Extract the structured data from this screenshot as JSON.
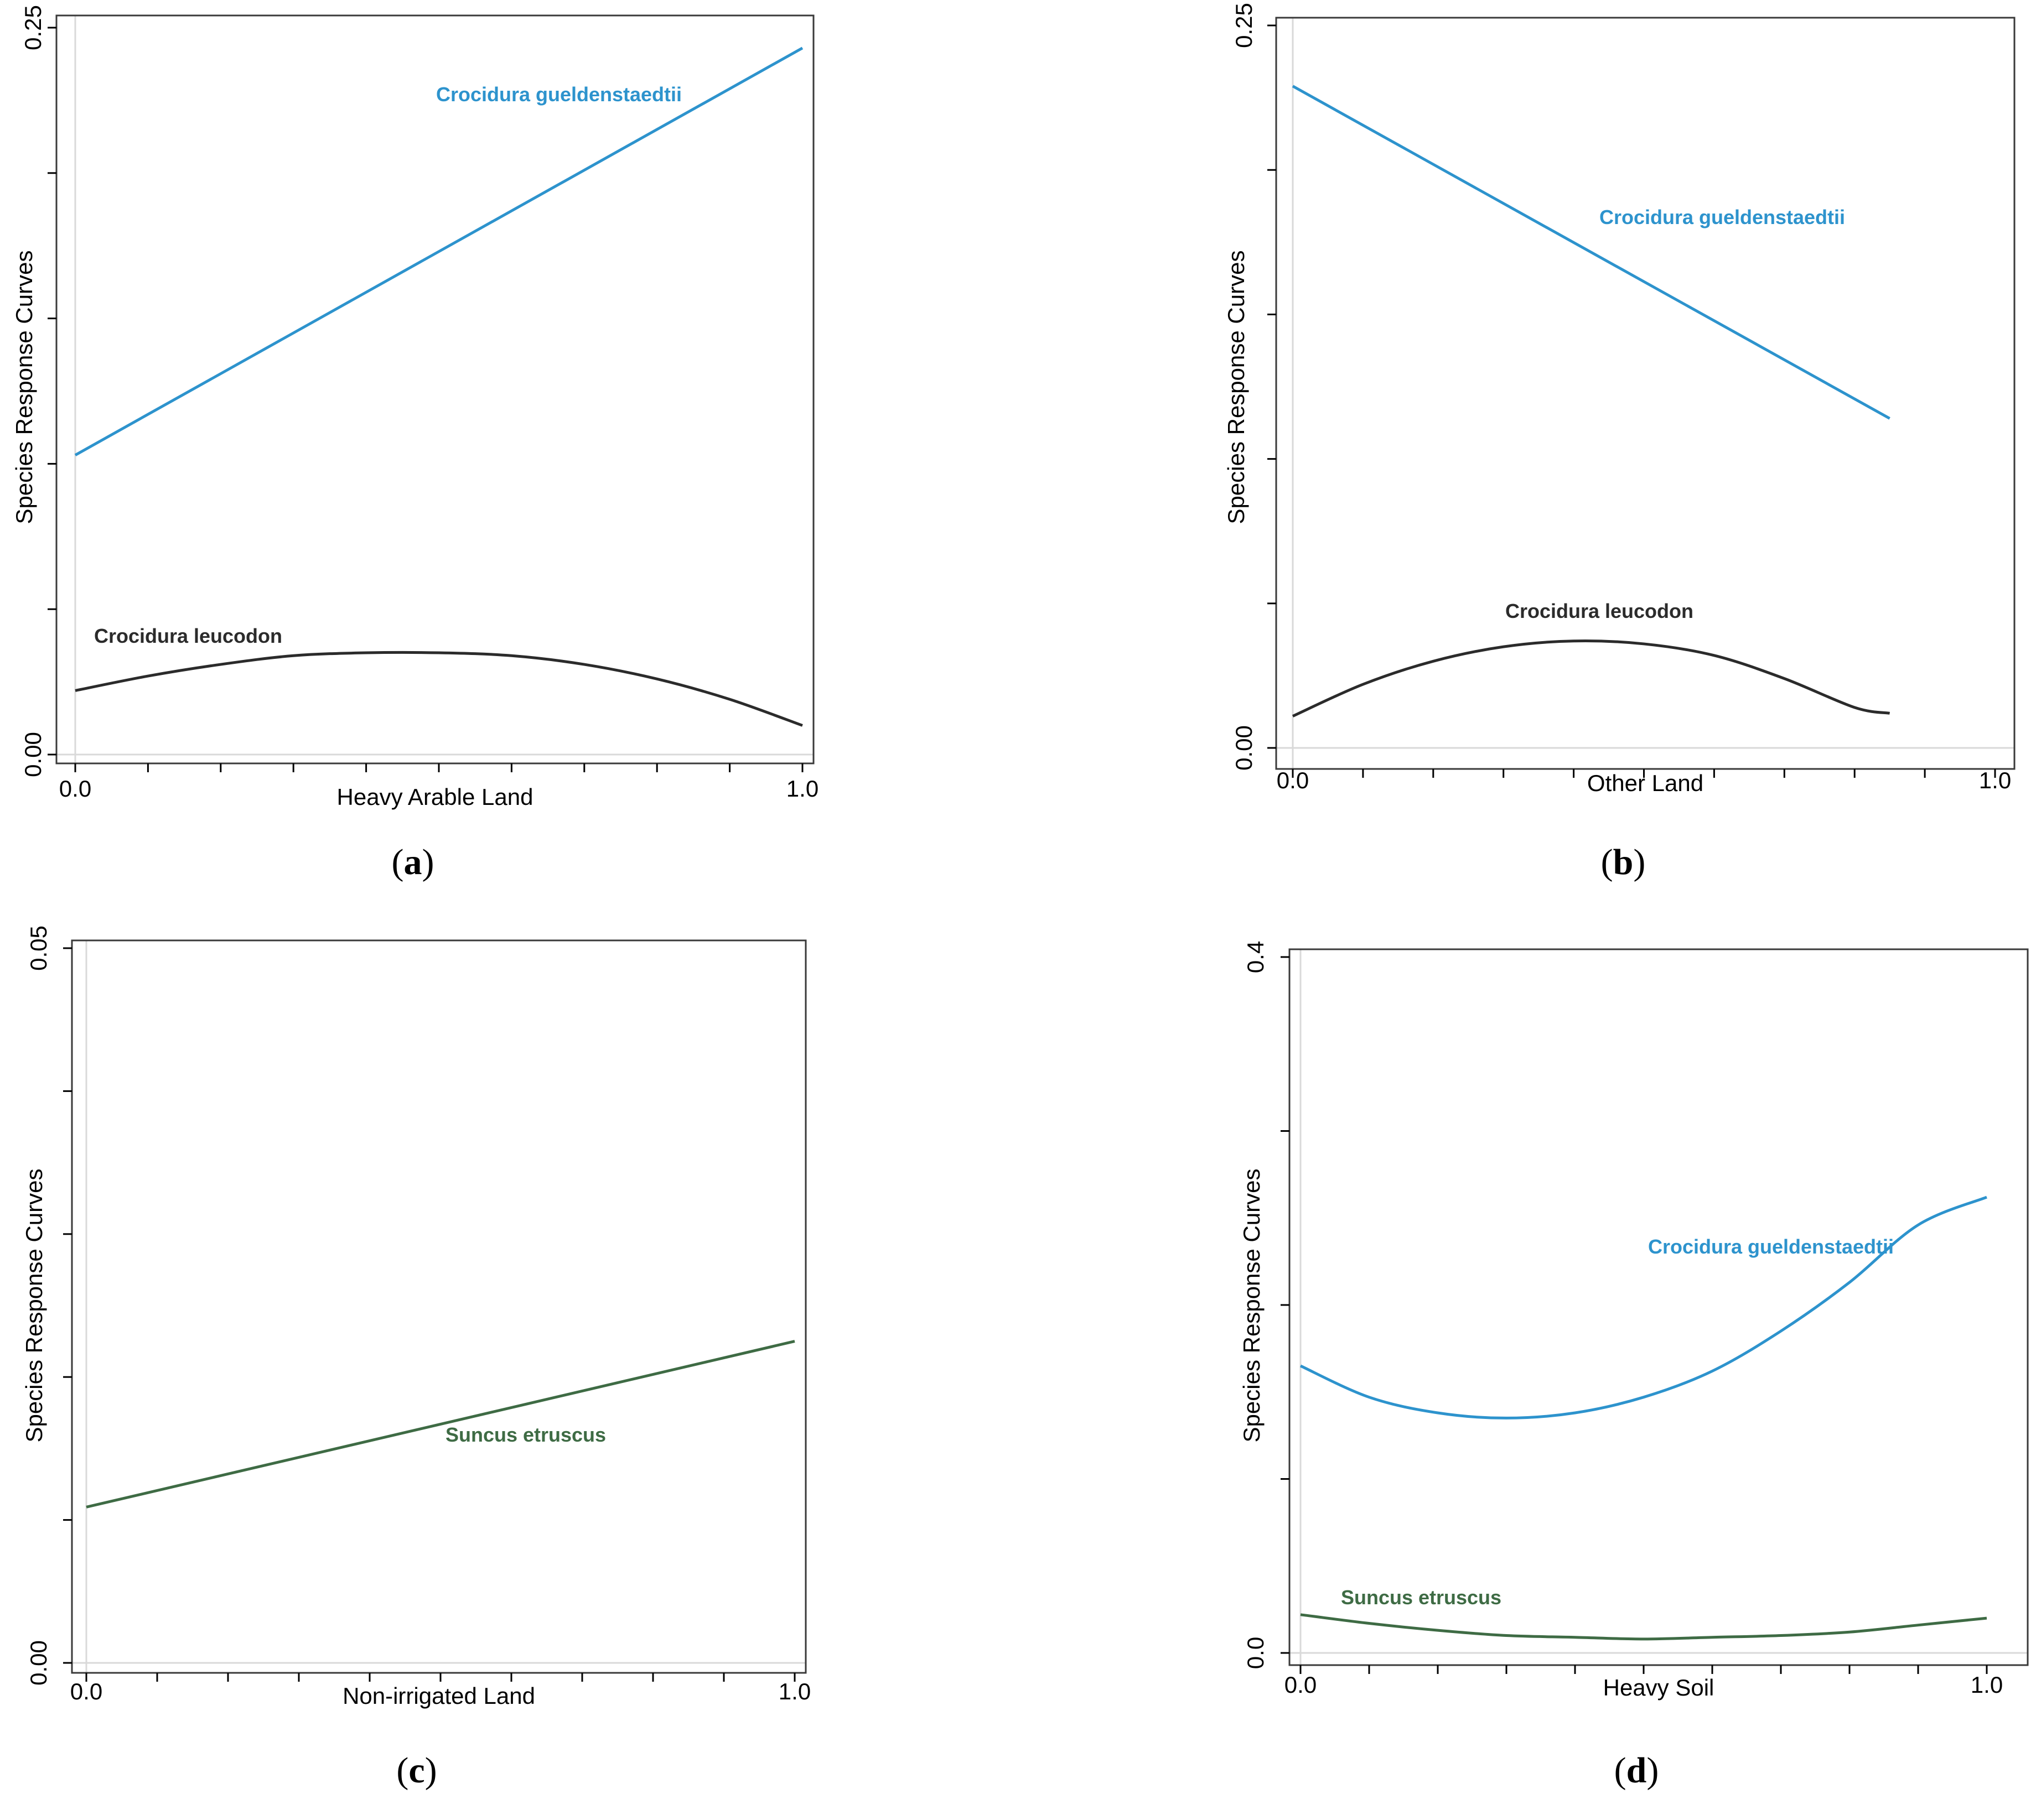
{
  "colors": {
    "crocidura_gueldenstaedtii": "#2d93cd",
    "crocidura_leucodon": "#2b2b2b",
    "suncus_etruscus": "#3e6b44",
    "axis": "#000000",
    "frame": "#3a3a3a",
    "grid_edge": "#d9d9d9"
  },
  "chart_data": [
    {
      "type": "line",
      "panel": "(a)",
      "panel_letter": "a",
      "xlabel": "Heavy Arable Land",
      "ylabel": "Species Response Curves",
      "xlim": [
        0.0,
        1.0
      ],
      "ylim": [
        0.0,
        0.25
      ],
      "x_tick_labels": [
        "0.0",
        "1.0"
      ],
      "y_tick_labels": [
        "0.00",
        "0.25"
      ],
      "series": [
        {
          "name": "Crocidura gueldenstaedtii",
          "color_key": "crocidura_gueldenstaedtii",
          "x": [
            0.0,
            1.0
          ],
          "y": [
            0.103,
            0.243
          ]
        },
        {
          "name": "Crocidura leucodon",
          "color_key": "crocidura_leucodon",
          "x": [
            0.0,
            0.1,
            0.2,
            0.3,
            0.4,
            0.5,
            0.6,
            0.7,
            0.8,
            0.9,
            1.0
          ],
          "y": [
            0.022,
            0.027,
            0.031,
            0.034,
            0.035,
            0.035,
            0.034,
            0.031,
            0.026,
            0.019,
            0.01
          ]
        }
      ]
    },
    {
      "type": "line",
      "panel": "(b)",
      "panel_letter": "b",
      "xlabel": "Other Land",
      "ylabel": "Species Response Curves",
      "xlim": [
        0.0,
        1.0
      ],
      "ylim": [
        0.0,
        0.25
      ],
      "x_tick_labels": [
        "0.0",
        "1.0"
      ],
      "y_tick_labels": [
        "0.00",
        "0.25"
      ],
      "series": [
        {
          "name": "Crocidura gueldenstaedtii",
          "color_key": "crocidura_gueldenstaedtii",
          "x": [
            0.0,
            0.85
          ],
          "y": [
            0.229,
            0.114
          ]
        },
        {
          "name": "Crocidura leucodon",
          "color_key": "crocidura_leucodon",
          "x": [
            0.0,
            0.1,
            0.2,
            0.3,
            0.4,
            0.5,
            0.6,
            0.7,
            0.8,
            0.85
          ],
          "y": [
            0.011,
            0.022,
            0.03,
            0.035,
            0.037,
            0.036,
            0.032,
            0.024,
            0.014,
            0.012
          ]
        }
      ]
    },
    {
      "type": "line",
      "panel": "(c)",
      "panel_letter": "c",
      "xlabel": "Non-irrigated Land",
      "ylabel": "Species Response Curves",
      "xlim": [
        0.0,
        1.0
      ],
      "ylim": [
        0.0,
        0.05
      ],
      "x_tick_labels": [
        "0.0",
        "1.0"
      ],
      "y_tick_labels": [
        "0.00",
        "0.05"
      ],
      "series": [
        {
          "name": "Suncus etruscus",
          "color_key": "suncus_etruscus",
          "x": [
            0.0,
            1.0
          ],
          "y": [
            0.0109,
            0.0225
          ]
        }
      ]
    },
    {
      "type": "line",
      "panel": "(d)",
      "panel_letter": "d",
      "xlabel": "Heavy Soil",
      "ylabel": "Species Response Curves",
      "xlim": [
        0.0,
        1.0
      ],
      "ylim": [
        0.0,
        0.4
      ],
      "x_tick_labels": [
        "0.0",
        "1.0"
      ],
      "y_tick_labels": [
        "0.0",
        "0.4"
      ],
      "series": [
        {
          "name": "Crocidura gueldenstaedtii",
          "color_key": "crocidura_gueldenstaedtii",
          "x": [
            0.0,
            0.1,
            0.2,
            0.3,
            0.4,
            0.5,
            0.6,
            0.7,
            0.8,
            0.9,
            1.0
          ],
          "y": [
            0.165,
            0.147,
            0.138,
            0.135,
            0.138,
            0.147,
            0.162,
            0.185,
            0.213,
            0.246,
            0.262
          ]
        },
        {
          "name": "Suncus etruscus",
          "color_key": "suncus_etruscus",
          "x": [
            0.0,
            0.1,
            0.2,
            0.3,
            0.4,
            0.5,
            0.6,
            0.7,
            0.8,
            0.9,
            1.0
          ],
          "y": [
            0.022,
            0.017,
            0.013,
            0.01,
            0.009,
            0.008,
            0.009,
            0.01,
            0.012,
            0.016,
            0.02
          ]
        }
      ]
    }
  ]
}
